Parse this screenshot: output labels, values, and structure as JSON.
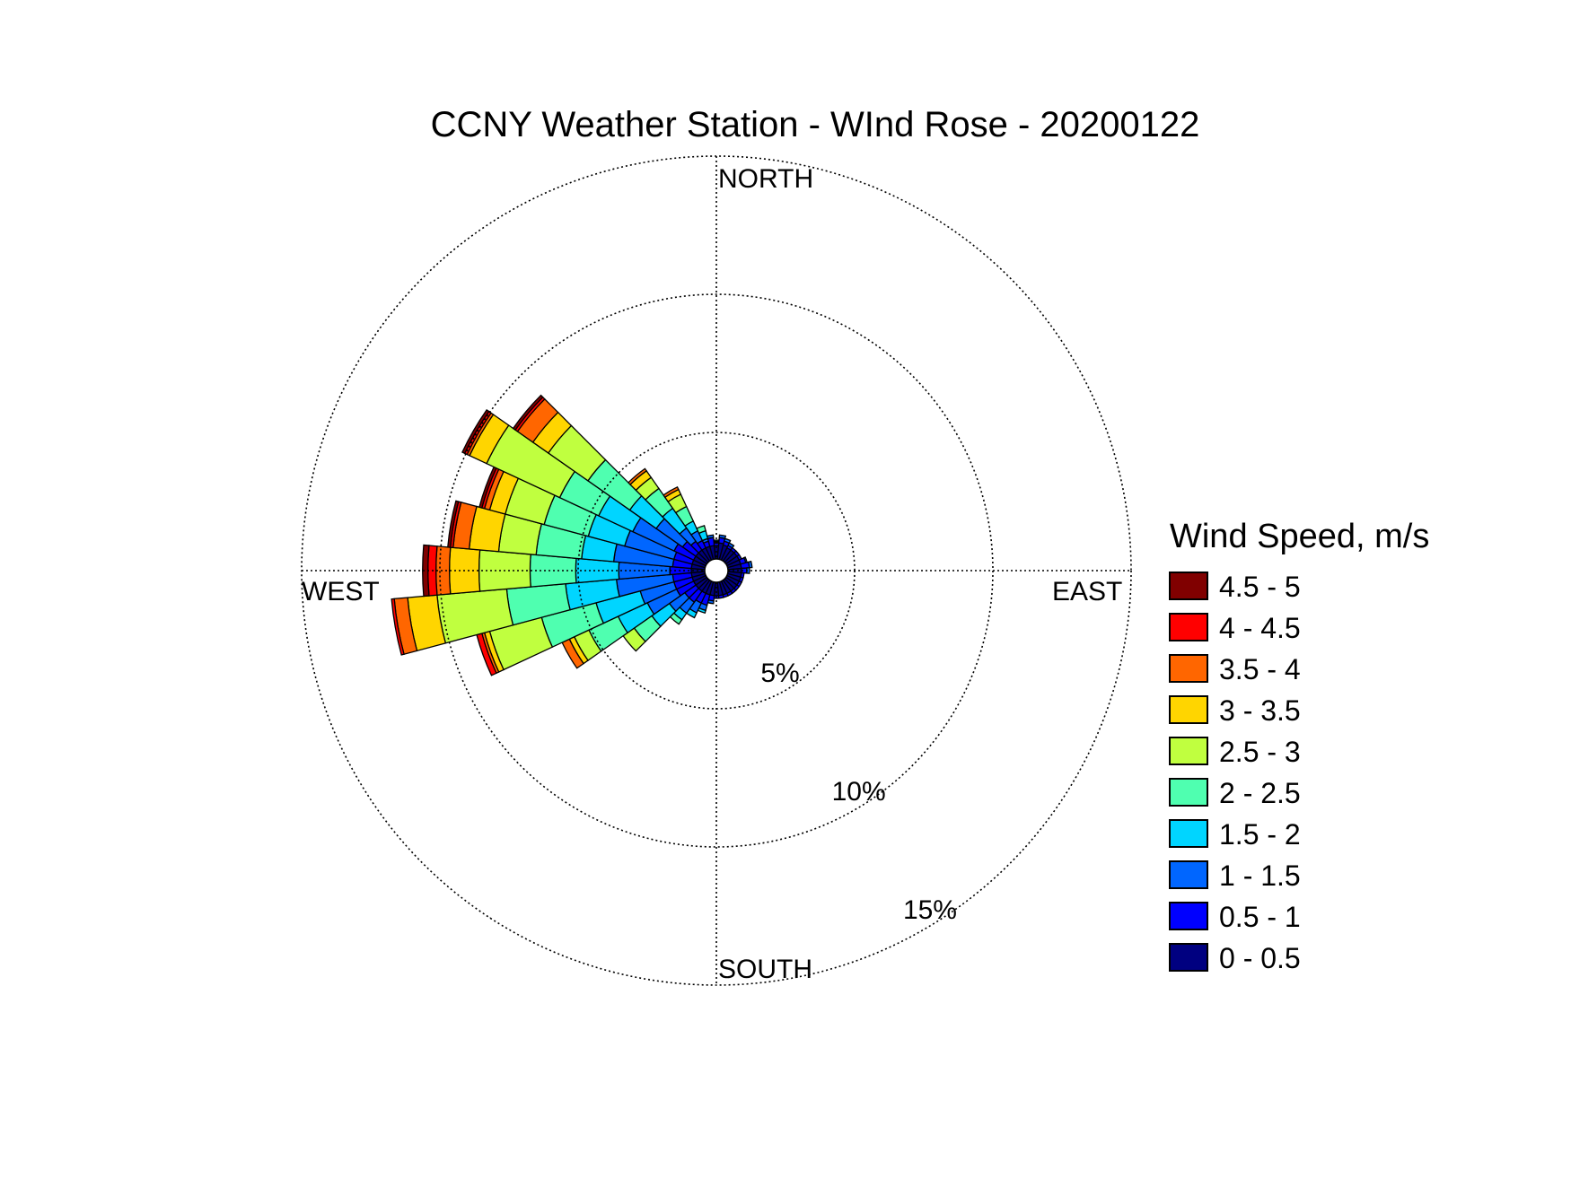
{
  "chart_data": {
    "type": "windrose",
    "title": "CCNY Weather Station - WInd Rose - 20200122",
    "direction_labels": {
      "north": "NORTH",
      "east": "EAST",
      "south": "SOUTH",
      "west": "WEST"
    },
    "radial_unit": "%",
    "radial_ticks": [
      5,
      10,
      15
    ],
    "radial_tick_labels": [
      "5%",
      "10%",
      "15%"
    ],
    "rmax": 15,
    "grid": true,
    "legend": {
      "title": "Wind Speed, m/s",
      "placement": "right",
      "items": [
        {
          "label": "4.5 - 5",
          "color": "#800000"
        },
        {
          "label": "4 - 4.5",
          "color": "#ff0000"
        },
        {
          "label": "3.5 - 4",
          "color": "#ff6600"
        },
        {
          "label": "3 - 3.5",
          "color": "#ffd500"
        },
        {
          "label": "2.5 - 3",
          "color": "#c0ff3f"
        },
        {
          "label": "2 - 2.5",
          "color": "#4fffb0"
        },
        {
          "label": "1.5 - 2",
          "color": "#00d5ff"
        },
        {
          "label": "1 - 1.5",
          "color": "#0066ff"
        },
        {
          "label": "0.5 - 1",
          "color": "#0000ff"
        },
        {
          "label": "0 - 0.5",
          "color": "#000080"
        }
      ]
    },
    "speed_bins": [
      "0 - 0.5",
      "0.5 - 1",
      "1 - 1.5",
      "1.5 - 2",
      "2 - 2.5",
      "2.5 - 3",
      "3 - 3.5",
      "3.5 - 4",
      "4 - 4.5",
      "4.5 - 5"
    ],
    "bin_colors": [
      "#000080",
      "#0000ff",
      "#0066ff",
      "#00d5ff",
      "#4fffb0",
      "#c0ff3f",
      "#ffd500",
      "#ff6600",
      "#ff0000",
      "#800000"
    ],
    "direction_bin_width_deg": 10,
    "directions_deg": [
      0,
      10,
      20,
      30,
      40,
      50,
      60,
      70,
      80,
      90,
      100,
      110,
      120,
      130,
      140,
      150,
      160,
      170,
      180,
      190,
      200,
      210,
      220,
      230,
      240,
      250,
      260,
      270,
      280,
      290,
      300,
      310,
      320,
      330,
      340,
      350
    ],
    "cumulative_percent": [
      [
        0.5,
        0.6,
        0.65,
        0.7,
        0.7,
        0.7,
        0.7,
        0.7,
        0.7,
        0.7
      ],
      [
        0.6,
        0.8,
        0.9,
        0.9,
        0.9,
        0.9,
        0.9,
        0.9,
        0.9,
        0.9
      ],
      [
        0.55,
        0.7,
        0.8,
        0.8,
        0.8,
        0.8,
        0.8,
        0.8,
        0.8,
        0.8
      ],
      [
        0.5,
        0.6,
        0.7,
        0.7,
        0.7,
        0.7,
        0.7,
        0.7,
        0.7,
        0.7
      ],
      [
        0.5,
        0.6,
        0.6,
        0.6,
        0.6,
        0.6,
        0.6,
        0.6,
        0.6,
        0.6
      ],
      [
        0.5,
        0.6,
        0.6,
        0.6,
        0.6,
        0.6,
        0.6,
        0.6,
        0.6,
        0.6
      ],
      [
        0.5,
        0.6,
        0.6,
        0.6,
        0.6,
        0.6,
        0.6,
        0.6,
        0.6,
        0.6
      ],
      [
        0.5,
        0.7,
        0.75,
        0.75,
        0.75,
        0.75,
        0.75,
        0.75,
        0.75,
        0.75
      ],
      [
        0.5,
        0.8,
        0.9,
        0.9,
        0.9,
        0.9,
        0.9,
        0.9,
        0.9,
        0.9
      ],
      [
        0.5,
        0.7,
        0.8,
        0.8,
        0.8,
        0.8,
        0.8,
        0.8,
        0.8,
        0.8
      ],
      [
        0.5,
        0.6,
        0.6,
        0.6,
        0.6,
        0.6,
        0.6,
        0.6,
        0.6,
        0.6
      ],
      [
        0.5,
        0.6,
        0.6,
        0.6,
        0.6,
        0.6,
        0.6,
        0.6,
        0.6,
        0.6
      ],
      [
        0.5,
        0.6,
        0.6,
        0.6,
        0.6,
        0.6,
        0.6,
        0.6,
        0.6,
        0.6
      ],
      [
        0.5,
        0.6,
        0.6,
        0.6,
        0.6,
        0.6,
        0.6,
        0.6,
        0.6,
        0.6
      ],
      [
        0.5,
        0.6,
        0.6,
        0.6,
        0.6,
        0.6,
        0.6,
        0.6,
        0.6,
        0.6
      ],
      [
        0.5,
        0.6,
        0.6,
        0.6,
        0.6,
        0.6,
        0.6,
        0.6,
        0.6,
        0.6
      ],
      [
        0.5,
        0.6,
        0.6,
        0.6,
        0.6,
        0.6,
        0.6,
        0.6,
        0.6,
        0.6
      ],
      [
        0.5,
        0.6,
        0.6,
        0.6,
        0.6,
        0.6,
        0.6,
        0.6,
        0.6,
        0.6
      ],
      [
        0.5,
        0.6,
        0.6,
        0.6,
        0.6,
        0.6,
        0.6,
        0.6,
        0.6,
        0.6
      ],
      [
        0.5,
        0.7,
        0.8,
        0.8,
        0.8,
        0.8,
        0.8,
        0.8,
        0.8,
        0.8
      ],
      [
        0.5,
        0.9,
        1.1,
        1.2,
        1.2,
        1.2,
        1.2,
        1.2,
        1.2,
        1.2
      ],
      [
        0.5,
        0.9,
        1.3,
        1.5,
        1.5,
        1.5,
        1.5,
        1.5,
        1.5,
        1.5
      ],
      [
        0.5,
        1.0,
        1.5,
        1.8,
        2.0,
        2.0,
        2.0,
        2.0,
        2.0,
        2.0
      ],
      [
        0.5,
        1.0,
        1.7,
        2.5,
        3.3,
        3.8,
        3.8,
        3.8,
        3.8,
        3.8
      ],
      [
        0.5,
        1.2,
        2.4,
        3.6,
        4.8,
        5.4,
        5.6,
        5.9,
        5.9,
        5.9
      ],
      [
        0.5,
        1.2,
        2.5,
        4.2,
        6.3,
        8.3,
        8.5,
        8.6,
        8.8,
        8.8
      ],
      [
        0.5,
        1.2,
        3.3,
        5.2,
        7.4,
        10.0,
        11.1,
        11.6,
        11.7,
        11.7
      ],
      [
        0.5,
        1.3,
        3.2,
        4.8,
        6.5,
        8.4,
        9.5,
        10.0,
        10.3,
        10.5
      ],
      [
        0.5,
        1.2,
        3.4,
        4.6,
        6.3,
        7.7,
        8.8,
        9.4,
        9.5,
        9.6
      ],
      [
        0.5,
        1.2,
        3.1,
        4.5,
        6.2,
        7.7,
        8.3,
        8.5,
        8.6,
        8.7
      ],
      [
        0.5,
        1.3,
        3.0,
        4.4,
        6.0,
        9.0,
        9.7,
        9.8,
        9.9,
        10.0
      ],
      [
        0.5,
        1.1,
        2.3,
        3.5,
        5.4,
        7.2,
        7.9,
        8.6,
        8.7,
        8.8
      ],
      [
        0.5,
        0.9,
        1.5,
        2.4,
        3.3,
        3.8,
        4.1,
        4.2,
        4.2,
        4.2
      ],
      [
        0.5,
        0.8,
        1.2,
        1.6,
        2.2,
        2.7,
        2.9,
        3.0,
        3.0,
        3.0
      ],
      [
        0.5,
        0.7,
        0.8,
        1.1,
        1.3,
        1.3,
        1.3,
        1.3,
        1.3,
        1.3
      ],
      [
        0.5,
        0.8,
        0.9,
        0.9,
        0.9,
        0.9,
        0.9,
        0.9,
        0.9,
        0.9
      ]
    ]
  }
}
